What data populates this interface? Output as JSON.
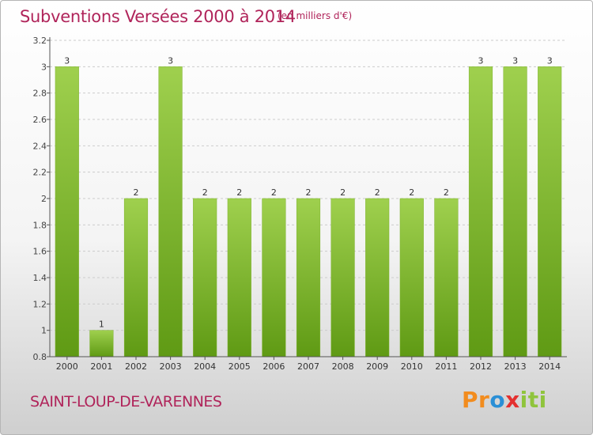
{
  "header": {
    "title": "Subventions Versées 2000 à 2014",
    "subtitle": "(en milliers d'€)"
  },
  "footer": {
    "commune": "SAINT-LOUP-DE-VARENNES",
    "logo_parts": [
      "Pr",
      "o",
      "x",
      "iti"
    ]
  },
  "colors": {
    "title": "#b0245a",
    "bar_top": "#9fd04e",
    "bar_bottom": "#5f9a14",
    "grid": "#cccccc"
  },
  "chart_data": {
    "type": "bar",
    "title": "Subventions Versées 2000 à 2014",
    "subtitle": "(en milliers d'€)",
    "categories": [
      "2000",
      "2001",
      "2002",
      "2003",
      "2004",
      "2005",
      "2006",
      "2007",
      "2008",
      "2009",
      "2010",
      "2011",
      "2012",
      "2013",
      "2014"
    ],
    "values": [
      3,
      1,
      2,
      3,
      2,
      2,
      2,
      2,
      2,
      2,
      2,
      2,
      3,
      3,
      3
    ],
    "data_labels": [
      "3",
      "1",
      "2",
      "3",
      "2",
      "2",
      "2",
      "2",
      "2",
      "2",
      "2",
      "2",
      "3",
      "3",
      "3"
    ],
    "y_ticks": [
      0.8,
      1,
      1.2,
      1.4,
      1.6,
      1.8,
      2,
      2.2,
      2.4,
      2.6,
      2.8,
      3,
      3.2
    ],
    "y_tick_labels": [
      "0.8",
      "1",
      "1.2",
      "1.4",
      "1.6",
      "1.8",
      "2",
      "2.2",
      "2.4",
      "2.6",
      "2.8",
      "3",
      "3.2"
    ],
    "ylim": [
      0.8,
      3.2
    ],
    "grid": true,
    "xlabel": "",
    "ylabel": ""
  }
}
